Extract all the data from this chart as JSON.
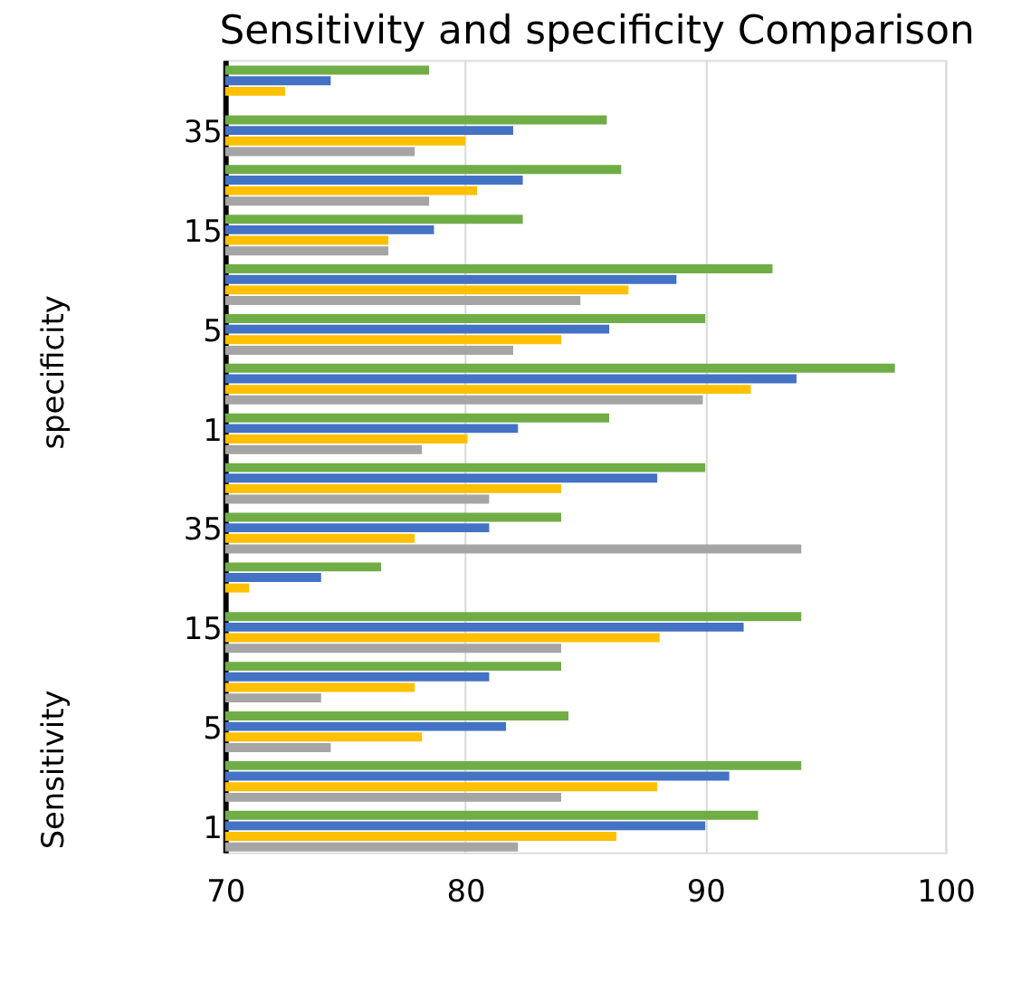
{
  "chart_data": {
    "type": "bar",
    "orientation": "horizontal",
    "title": "Sensitivity and specificity Comparison",
    "categories": [
      null,
      "35",
      null,
      "15",
      null,
      "5",
      null,
      "1",
      null,
      "35",
      null,
      "15",
      null,
      "5",
      null,
      "1"
    ],
    "series": [
      {
        "color": "#70ad47",
        "values": [
          78.5,
          85.9,
          86.5,
          82.4,
          92.8,
          90,
          97.9,
          86,
          90,
          84,
          76.5,
          94,
          84,
          84.3,
          94,
          92.2
        ]
      },
      {
        "color": "#4472c4",
        "values": [
          74.4,
          82,
          82.4,
          78.7,
          88.8,
          86,
          93.8,
          82.2,
          88,
          81,
          74,
          91.6,
          81,
          81.7,
          91,
          90
        ]
      },
      {
        "color": "#ffc000",
        "values": [
          72.5,
          80,
          80.5,
          76.8,
          86.8,
          84,
          91.9,
          80.1,
          84,
          77.9,
          71,
          88.1,
          77.9,
          78.2,
          88,
          86.3
        ]
      },
      {
        "color": "#a5a5a5",
        "values": [
          null,
          77.9,
          78.5,
          76.8,
          84.8,
          82,
          89.9,
          78.2,
          81,
          94,
          null,
          84,
          74,
          74.4,
          84,
          82.2
        ]
      }
    ],
    "annotations": [
      "specificity",
      "Sensitivity"
    ],
    "xlim": [
      70,
      100
    ],
    "xticks": [
      70,
      80,
      90,
      100
    ],
    "grid": "x"
  }
}
